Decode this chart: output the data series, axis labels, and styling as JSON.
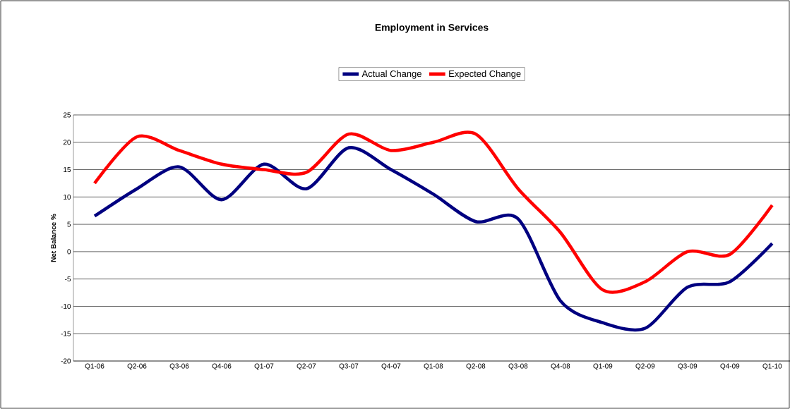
{
  "chart_data": {
    "type": "line",
    "title": "Employment in Services",
    "ylabel": "Net Balance %",
    "categories": [
      "Q1-06",
      "Q2-06",
      "Q3-06",
      "Q4-06",
      "Q1-07",
      "Q2-07",
      "Q3-07",
      "Q4-07",
      "Q1-08",
      "Q2-08",
      "Q3-08",
      "Q4-08",
      "Q1-09",
      "Q2-09",
      "Q3-09",
      "Q4-09",
      "Q1-10"
    ],
    "series": [
      {
        "name": "Actual Change",
        "color": "#000080",
        "values": [
          6.5,
          11.5,
          15.5,
          9.5,
          16,
          11.5,
          19,
          15,
          10.5,
          5.5,
          6,
          -9,
          -13,
          -14,
          -6.5,
          -5.5,
          1.5
        ]
      },
      {
        "name": "Expected Change",
        "color": "#ff0000",
        "values": [
          12.5,
          21,
          18.5,
          16,
          15,
          14.5,
          21.5,
          18.5,
          20,
          21.5,
          11.5,
          3.5,
          -7,
          -5.5,
          0,
          -0.5,
          8.5
        ]
      }
    ],
    "ylim": [
      -20,
      25
    ],
    "yticks": [
      -20,
      -15,
      -10,
      -5,
      0,
      5,
      10,
      15,
      20,
      25
    ],
    "grid": "y",
    "legend": "top",
    "marker": "none",
    "line_style": "solid"
  }
}
